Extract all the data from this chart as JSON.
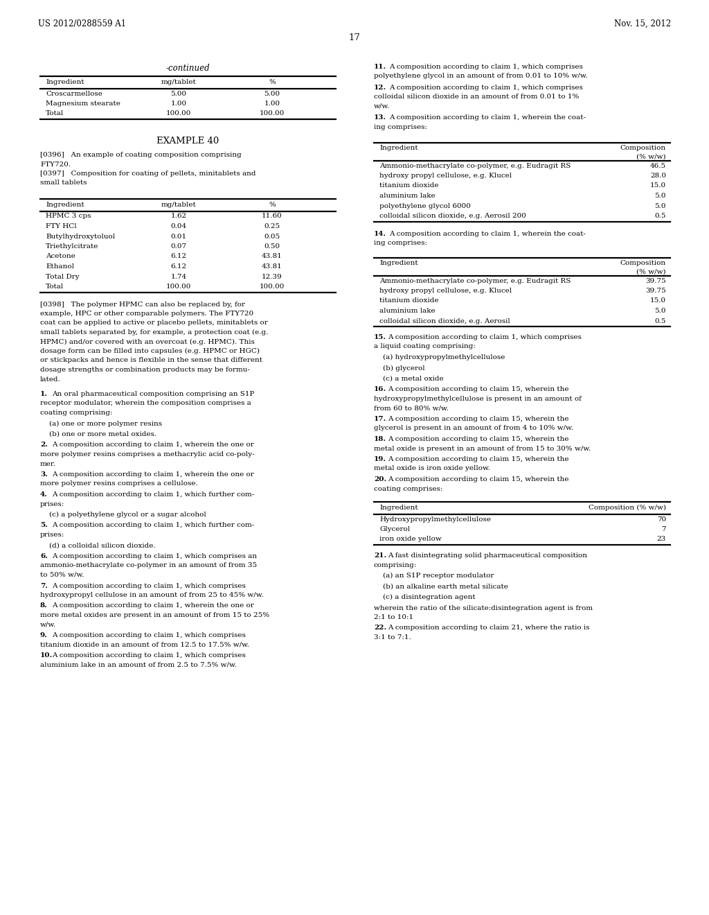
{
  "page_header_left": "US 2012/0288559 A1",
  "page_header_right": "Nov. 15, 2012",
  "page_number": "17",
  "table1_rows": [
    [
      "Croscarmellose",
      "5.00",
      "5.00"
    ],
    [
      "Magnesium stearate",
      "1.00",
      "1.00"
    ],
    [
      "Total",
      "100.00",
      "100.00"
    ]
  ],
  "table2_rows": [
    [
      "HPMC 3 cps",
      "1.62",
      "11.60"
    ],
    [
      "FTY HCl",
      "0.04",
      "0.25"
    ],
    [
      "Butylhydroxytoluol",
      "0.01",
      "0.05"
    ],
    [
      "Triethylcitrate",
      "0.07",
      "0.50"
    ],
    [
      "Acetone",
      "6.12",
      "43.81"
    ],
    [
      "Ethanol",
      "6.12",
      "43.81"
    ],
    [
      "Total Dry",
      "1.74",
      "12.39"
    ],
    [
      "Total",
      "100.00",
      "100.00"
    ]
  ],
  "table3_rows": [
    [
      "Ammonio-methacrylate co-polymer, e.g. Eudragit RS",
      "46.5"
    ],
    [
      "hydroxy propyl cellulose, e.g. Klucel",
      "28.0"
    ],
    [
      "titanium dioxide",
      "15.0"
    ],
    [
      "aluminium lake",
      "5.0"
    ],
    [
      "polyethylene glycol 6000",
      "5.0"
    ],
    [
      "colloidal silicon dioxide, e.g. Aerosil 200",
      "0.5"
    ]
  ],
  "table4_rows": [
    [
      "Ammonio-methacrylate co-polymer, e.g. Eudragit RS",
      "39.75"
    ],
    [
      "hydroxy propyl cellulose, e.g. Klucel",
      "39.75"
    ],
    [
      "titanium dioxide",
      "15.0"
    ],
    [
      "aluminium lake",
      "5.0"
    ],
    [
      "colloidal silicon dioxide, e.g. Aerosil",
      "0.5"
    ]
  ],
  "table5_rows": [
    [
      "Hydroxypropylmethylcellulose",
      "70"
    ],
    [
      "Glycerol",
      "7"
    ],
    [
      "iron oxide yellow",
      "23"
    ]
  ],
  "left_claims": [
    {
      "num": "1.",
      "lines": [
        "An oral pharmaceutical composition comprising an S1P",
        "receptor modulator, wherein the composition comprises a",
        "coating comprising:"
      ]
    },
    {
      "num": "",
      "lines": [
        "    (a) one or more polymer resins"
      ]
    },
    {
      "num": "",
      "lines": [
        "    (b) one or more metal oxides."
      ]
    },
    {
      "num": "2.",
      "lines": [
        "A composition according to claim 1, wherein the one or",
        "more polymer resins comprises a methacrylic acid co-poly-",
        "mer."
      ]
    },
    {
      "num": "3.",
      "lines": [
        "A composition according to claim 1, wherein the one or",
        "more polymer resins comprises a cellulose."
      ]
    },
    {
      "num": "4.",
      "lines": [
        "A composition according to claim 1, which further com-",
        "prises:"
      ]
    },
    {
      "num": "",
      "lines": [
        "    (c) a polyethylene glycol or a sugar alcohol"
      ]
    },
    {
      "num": "5.",
      "lines": [
        "A composition according to claim 1, which further com-",
        "prises:"
      ]
    },
    {
      "num": "",
      "lines": [
        "    (d) a colloidal silicon dioxide."
      ]
    },
    {
      "num": "6.",
      "lines": [
        "A composition according to claim 1, which comprises an",
        "ammonio-methacrylate co-polymer in an amount of from 35",
        "to 50% w/w."
      ]
    },
    {
      "num": "7.",
      "lines": [
        "A composition according to claim 1, which comprises",
        "hydroxypropyl cellulose in an amount of from 25 to 45% w/w."
      ]
    },
    {
      "num": "8.",
      "lines": [
        "A composition according to claim 1, wherein the one or",
        "more metal oxides are present in an amount of from 15 to 25%",
        "w/w."
      ]
    },
    {
      "num": "9.",
      "lines": [
        "A composition according to claim 1, which comprises",
        "titanium dioxide in an amount of from 12.5 to 17.5% w/w."
      ]
    },
    {
      "num": "10.",
      "lines": [
        "A composition according to claim 1, which comprises",
        "aluminium lake in an amount of from 2.5 to 7.5% w/w."
      ]
    }
  ],
  "right_claims_top": [
    {
      "num": "11.",
      "lines": [
        "A composition according to claim 1, which comprises",
        "polyethylene glycol in an amount of from 0.01 to 10% w/w."
      ]
    },
    {
      "num": "12.",
      "lines": [
        "A composition according to claim 1, which comprises",
        "colloidal silicon dioxide in an amount of from 0.01 to 1%",
        "w/w."
      ]
    },
    {
      "num": "13.",
      "lines": [
        "A composition according to claim 1, wherein the coat-",
        "ing comprises:"
      ]
    }
  ],
  "right_claims_mid": [
    {
      "num": "14.",
      "lines": [
        "A composition according to claim 1, wherein the coat-",
        "ing comprises:"
      ]
    }
  ],
  "right_claims_15_20": [
    {
      "num": "15.",
      "lines": [
        "A composition according to claim 1, which comprises",
        "a liquid coating comprising:"
      ]
    },
    {
      "num": "",
      "lines": [
        "    (a) hydroxypropylmethylcellulose"
      ]
    },
    {
      "num": "",
      "lines": [
        "    (b) glycerol"
      ]
    },
    {
      "num": "",
      "lines": [
        "    (c) a metal oxide"
      ]
    },
    {
      "num": "16.",
      "lines": [
        "A composition according to claim 15, wherein the",
        "hydroxypropylmethylcellulose is present in an amount of",
        "from 60 to 80% w/w."
      ]
    },
    {
      "num": "17.",
      "lines": [
        "A composition according to claim 15, wherein the",
        "glycerol is present in an amount of from 4 to 10% w/w."
      ]
    },
    {
      "num": "18.",
      "lines": [
        "A composition according to claim 15, wherein the",
        "metal oxide is present in an amount of from 15 to 30% w/w."
      ]
    },
    {
      "num": "19.",
      "lines": [
        "A composition according to claim 15, wherein the",
        "metal oxide is iron oxide yellow."
      ]
    },
    {
      "num": "20.",
      "lines": [
        "A composition according to claim 15, wherein the",
        "coating comprises:"
      ]
    }
  ],
  "right_claims_bot": [
    {
      "num": "21.",
      "lines": [
        "A fast disintegrating solid pharmaceutical composition",
        "comprising:"
      ]
    },
    {
      "num": "",
      "lines": [
        "    (a) an S1P receptor modulator"
      ]
    },
    {
      "num": "",
      "lines": [
        "    (b) an alkaline earth metal silicate"
      ]
    },
    {
      "num": "",
      "lines": [
        "    (c) a disintegration agent"
      ]
    },
    {
      "num": "",
      "lines": [
        "wherein the ratio of the silicate:disintegration agent is from",
        "2:1 to 10:1"
      ]
    },
    {
      "num": "22.",
      "lines": [
        "A composition according to claim 21, where the ratio is",
        "3:1 to 7:1."
      ]
    }
  ]
}
